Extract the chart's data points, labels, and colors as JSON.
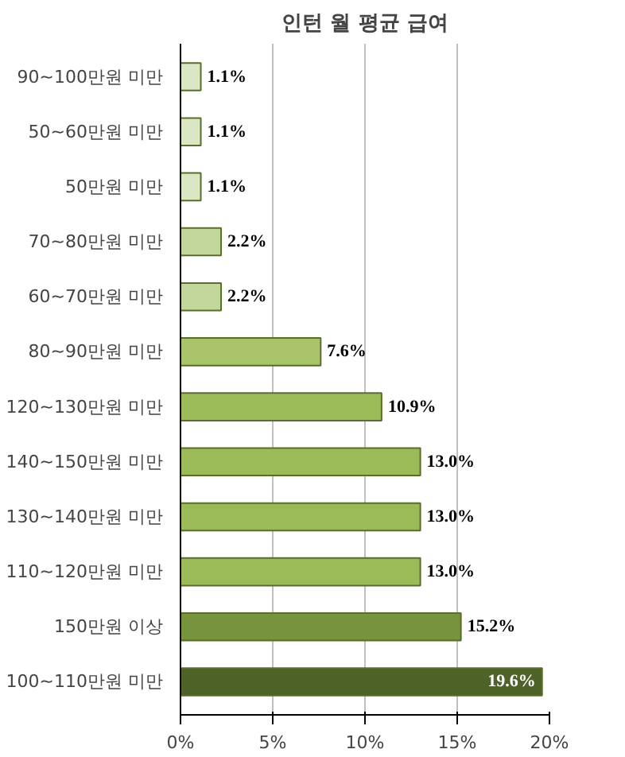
{
  "chart_data": {
    "type": "bar",
    "orientation": "horizontal",
    "title": "인턴 월 평균 급여",
    "categories": [
      "90~100만원 미만",
      "50~60만원 미만",
      "50만원 미만",
      "70~80만원 미만",
      "60~70만원 미만",
      "80~90만원 미만",
      "120~130만원 미만",
      "140~150만원 미만",
      "130~140만원 미만",
      "110~120만원 미만",
      "150만원 이상",
      "100~110만원 미만"
    ],
    "values": [
      1.1,
      1.1,
      1.1,
      2.2,
      2.2,
      7.6,
      10.9,
      13.0,
      13.0,
      13.0,
      15.2,
      19.6
    ],
    "value_labels": [
      "1.1%",
      "1.1%",
      "1.1%",
      "2.2%",
      "2.2%",
      "7.6%",
      "10.9%",
      "13.0%",
      "13.0%",
      "13.0%",
      "15.2%",
      "19.6%"
    ],
    "colors": [
      "#dbe6c4",
      "#dbe6c4",
      "#dbe6c4",
      "#c3d69b",
      "#c3d69b",
      "#a9c46a",
      "#9bbb59",
      "#9bbb59",
      "#9bbb59",
      "#9bbb59",
      "#77933c",
      "#4f6228"
    ],
    "xlim": [
      0,
      20
    ],
    "xticks": [
      {
        "value": 0,
        "label": "0%"
      },
      {
        "value": 5,
        "label": "5%"
      },
      {
        "value": 10,
        "label": "10%"
      },
      {
        "value": 15,
        "label": "15%"
      },
      {
        "value": 20,
        "label": "20%"
      }
    ],
    "grid": "x"
  }
}
